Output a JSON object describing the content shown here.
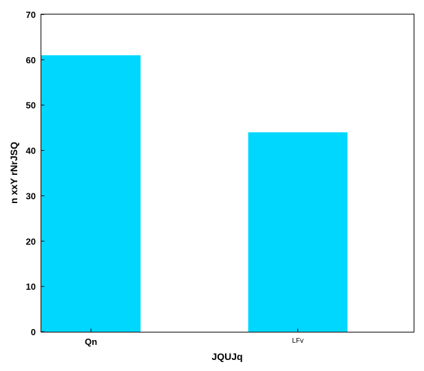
{
  "chart_data": {
    "type": "bar",
    "categories": [
      "Qn",
      "LFv"
    ],
    "values": [
      61,
      44
    ],
    "xlabel": "JQUJq",
    "ylabel": "n xxY rNrJSQ",
    "ylim": [
      0,
      70
    ],
    "yticks": [
      0,
      10,
      20,
      30,
      40,
      50,
      60,
      70
    ],
    "grid": false,
    "colors": {
      "bar": "#00d7ff",
      "axis": "#000000",
      "background": "#ffffff"
    }
  }
}
